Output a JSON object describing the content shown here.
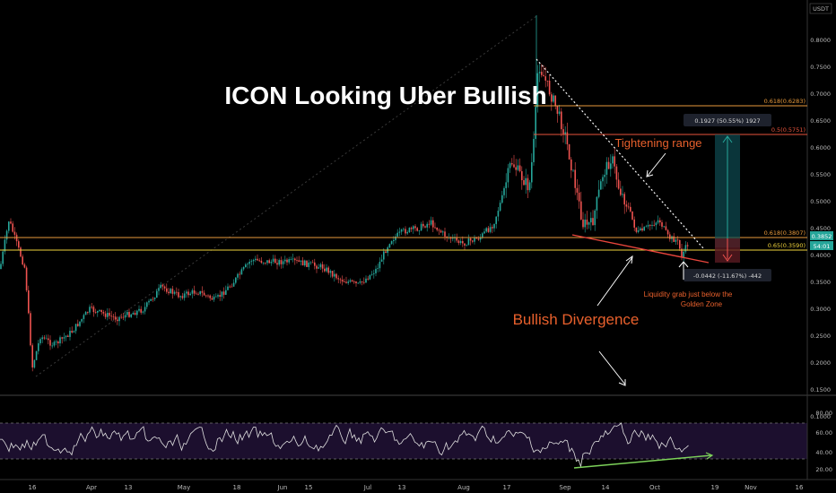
{
  "currency": "USDT",
  "title": "ICON Looking Uber Bullish",
  "annotations": {
    "tightening": "Tightening range",
    "bullish_divergence": "Bullish Divergence",
    "liquidity_line1": "Liquidity grab just below the",
    "liquidity_line2": "Golden Zone"
  },
  "price_axis": {
    "labels": [
      "0.8000",
      "0.7500",
      "0.7000",
      "0.6500",
      "0.6000",
      "0.5500",
      "0.5000",
      "0.4500",
      "0.4000",
      "0.3500",
      "0.3000",
      "0.2500",
      "0.2000",
      "0.1500",
      "0.1000"
    ],
    "current_price": "0.3852",
    "countdown": "54:01"
  },
  "fib_levels": [
    {
      "label": "0.618(0.6283)",
      "color": "#e89a3c"
    },
    {
      "label": "0.5(0.5751)",
      "color": "#e8543c"
    },
    {
      "label": "0.618(0.3807)",
      "color": "#e89a3c"
    },
    {
      "label": "0.65(0.3590)",
      "color": "#f0d43c"
    }
  ],
  "measure_up": "0.1927 (50.55%) 1927",
  "measure_down": "-0.0442 (-11.67%) -442",
  "x_axis": [
    "16",
    "Apr",
    "13",
    "May",
    "18",
    "Jun",
    "15",
    "Jul",
    "13",
    "Aug",
    "17",
    "Sep",
    "14",
    "Oct",
    "19",
    "Nov",
    "16"
  ],
  "rsi_axis": [
    "80.00",
    "60.00",
    "40.00",
    "20.00"
  ],
  "colors": {
    "up": "#26a69a",
    "down": "#ef5350",
    "rsi_line": "#e0e0e0",
    "rsi_band": "#1c0f2e",
    "divergence": "#7dd35a",
    "measure_up_fill": "#0e4c52",
    "measure_down_fill": "#5a1a22"
  }
}
